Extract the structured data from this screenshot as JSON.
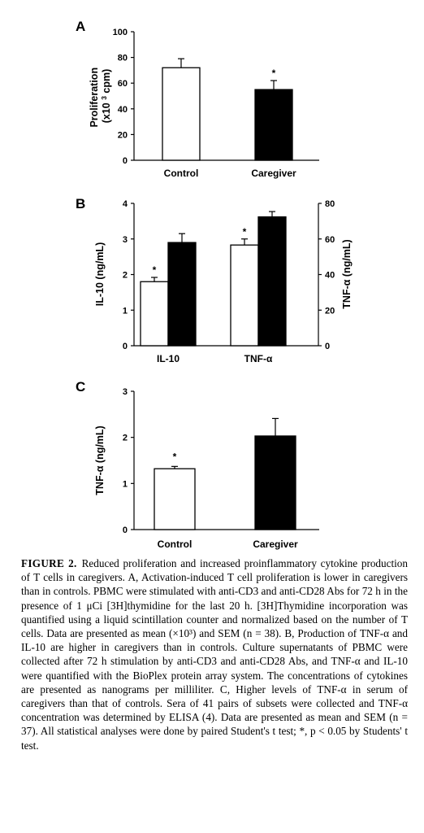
{
  "chart_data": [
    {
      "type": "bar",
      "panel": "A",
      "categories": [
        "Control",
        "Caregiver"
      ],
      "values": [
        72,
        55
      ],
      "errors": [
        7,
        7
      ],
      "significant": [
        false,
        true
      ],
      "significance_marker": "*",
      "ylabel": "Proliferation (x10 3 cpm)",
      "ylim": [
        0,
        100
      ],
      "yticks": [
        0,
        20,
        40,
        60,
        80,
        100
      ],
      "bar_colors": [
        "#ffffff",
        "#000000"
      ]
    },
    {
      "type": "bar",
      "panel": "B",
      "categories": [
        "IL-10",
        "TNF-α"
      ],
      "series": [
        {
          "group": "Control",
          "values_left_axis": [
            1.8,
            2.83
          ],
          "errors": [
            0.12,
            0.17
          ],
          "color": "#ffffff"
        },
        {
          "group": "Caregiver",
          "values_left_axis": [
            2.9,
            3.62
          ],
          "errors": [
            0.25,
            0.15
          ],
          "color": "#000000"
        }
      ],
      "significant": [
        [
          true,
          false
        ],
        [
          true,
          false
        ]
      ],
      "significance_marker": "*",
      "ylabel_left": "IL-10 (ng/mL)",
      "ylabel_right": "TNF-α (ng/mL)",
      "ylim_left": [
        0,
        4
      ],
      "ylim_right": [
        0,
        80
      ],
      "yticks_left": [
        0,
        1,
        2,
        3,
        4
      ],
      "yticks_right": [
        0,
        20,
        40,
        60,
        80
      ]
    },
    {
      "type": "bar",
      "panel": "C",
      "categories": [
        "Control",
        "Caregiver"
      ],
      "values": [
        1.32,
        2.03
      ],
      "errors": [
        0.05,
        0.38
      ],
      "significant": [
        true,
        false
      ],
      "significance_marker": "*",
      "ylabel": "TNF-α (ng/mL)",
      "ylim": [
        0,
        3
      ],
      "yticks": [
        0,
        1,
        2,
        3
      ],
      "bar_colors": [
        "#ffffff",
        "#000000"
      ]
    }
  ],
  "caption": {
    "label": "FIGURE 2.",
    "text": "Reduced proliferation and increased proinflammatory cytokine production of T cells in caregivers. A, Activation-induced T cell proliferation is lower in caregivers than in controls. PBMC were stimulated with anti-CD3 and anti-CD28 Abs for 72 h in the presence of 1 μCi [3H]thymidine for the last 20 h. [3H]Thymidine incorporation was quantified using a liquid scintillation counter and normalized based on the number of T cells. Data are presented as mean (×10³) and SEM (n = 38). B, Production of TNF-α and IL-10 are higher in caregivers than in controls. Culture supernatants of PBMC were collected after 72 h stimulation by anti-CD3 and anti-CD28 Abs, and TNF-α and IL-10 were quantified with the BioPlex protein array system. The concentrations of cytokines are presented as nanograms per milliliter. C, Higher levels of TNF-α in serum of caregivers than that of controls. Sera of 41 pairs of subsets were collected and TNF-α concentration was determined by ELISA (4). Data are presented as mean and SEM (n = 37). All statistical analyses were done by paired Student's t test; *, p < 0.05 by Students' t test."
  }
}
